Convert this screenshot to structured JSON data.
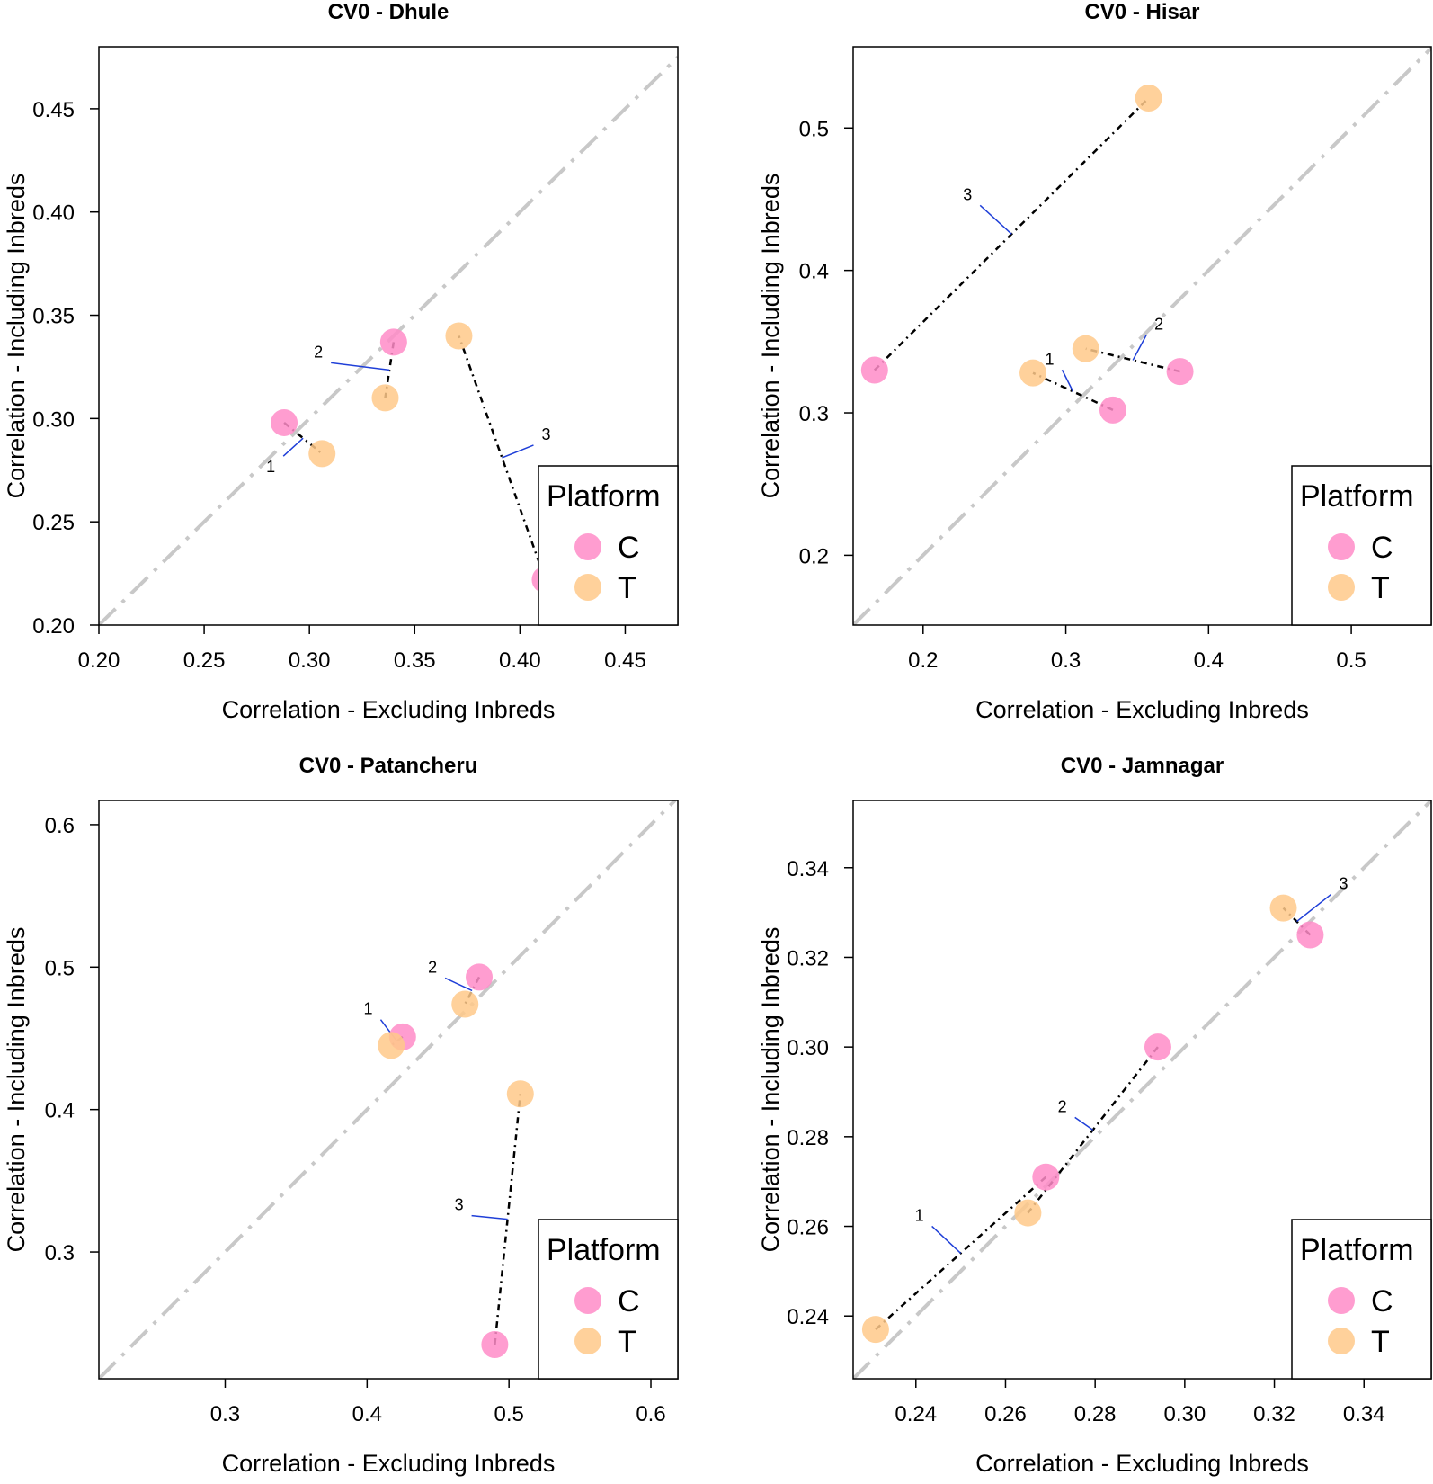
{
  "colors": {
    "C": "#ff8cc8",
    "T": "#ffc98a",
    "diagonal": "#c8c8c8",
    "connector": "#000000",
    "pointer": "#1f3fd8"
  },
  "chart_data": [
    {
      "type": "scatter",
      "title": "CV0 - Dhule",
      "xlabel": "Correlation - Excluding Inbreds",
      "ylabel": "Correlation - Including Inbreds",
      "xlim": [
        0.2,
        0.475
      ],
      "ylim": [
        0.2,
        0.48
      ],
      "xticks": [
        0.2,
        0.25,
        0.3,
        0.35,
        0.4,
        0.45
      ],
      "xtick_labels": [
        "0.20",
        "0.25",
        "0.30",
        "0.35",
        "0.40",
        "0.45"
      ],
      "yticks": [
        0.2,
        0.25,
        0.3,
        0.35,
        0.4,
        0.45
      ],
      "ytick_labels": [
        "0.20",
        "0.25",
        "0.30",
        "0.35",
        "0.40",
        "0.45"
      ],
      "legend": {
        "title": "Platform",
        "entries": [
          "C",
          "T"
        ],
        "position": "bottom-right"
      },
      "pairs": [
        {
          "label": "1",
          "C": [
            0.288,
            0.298
          ],
          "T": [
            0.306,
            0.283
          ]
        },
        {
          "label": "2",
          "C": [
            0.34,
            0.337
          ],
          "T": [
            0.336,
            0.31
          ]
        },
        {
          "label": "3",
          "C": [
            0.412,
            0.222
          ],
          "T": [
            0.371,
            0.34
          ]
        }
      ]
    },
    {
      "type": "scatter",
      "title": "CV0 - Hisar",
      "xlabel": "Correlation - Excluding Inbreds",
      "ylabel": "Correlation - Including Inbreds",
      "xlim": [
        0.151,
        0.556
      ],
      "ylim": [
        0.151,
        0.557
      ],
      "xticks": [
        0.2,
        0.3,
        0.4,
        0.5
      ],
      "xtick_labels": [
        "0.2",
        "0.3",
        "0.4",
        "0.5"
      ],
      "yticks": [
        0.2,
        0.3,
        0.4,
        0.5
      ],
      "ytick_labels": [
        "0.2",
        "0.3",
        "0.4",
        "0.5"
      ],
      "legend": {
        "title": "Platform",
        "entries": [
          "C",
          "T"
        ],
        "position": "bottom-right"
      },
      "pairs": [
        {
          "label": "1",
          "C": [
            0.333,
            0.302
          ],
          "T": [
            0.277,
            0.328
          ]
        },
        {
          "label": "2",
          "C": [
            0.38,
            0.329
          ],
          "T": [
            0.314,
            0.345
          ]
        },
        {
          "label": "3",
          "C": [
            0.166,
            0.33
          ],
          "T": [
            0.358,
            0.521
          ]
        }
      ]
    },
    {
      "type": "scatter",
      "title": "CV0 - Patancheru",
      "xlabel": "Correlation - Excluding Inbreds",
      "ylabel": "Correlation - Including Inbreds",
      "xlim": [
        0.211,
        0.619
      ],
      "ylim": [
        0.211,
        0.617
      ],
      "xticks": [
        0.3,
        0.4,
        0.5,
        0.6
      ],
      "xtick_labels": [
        "0.3",
        "0.4",
        "0.5",
        "0.6"
      ],
      "yticks": [
        0.3,
        0.4,
        0.5,
        0.6
      ],
      "ytick_labels": [
        "0.3",
        "0.4",
        "0.5",
        "0.6"
      ],
      "legend": {
        "title": "Platform",
        "entries": [
          "C",
          "T"
        ],
        "position": "bottom-right"
      },
      "pairs": [
        {
          "label": "1",
          "C": [
            0.425,
            0.451
          ],
          "T": [
            0.417,
            0.445
          ]
        },
        {
          "label": "2",
          "C": [
            0.479,
            0.493
          ],
          "T": [
            0.469,
            0.474
          ]
        },
        {
          "label": "3",
          "C": [
            0.49,
            0.235
          ],
          "T": [
            0.508,
            0.411
          ]
        }
      ]
    },
    {
      "type": "scatter",
      "title": "CV0 - Jamnagar",
      "xlabel": "Correlation - Excluding Inbreds",
      "ylabel": "Correlation - Including Inbreds",
      "xlim": [
        0.226,
        0.355
      ],
      "ylim": [
        0.226,
        0.355
      ],
      "xticks": [
        0.24,
        0.26,
        0.28,
        0.3,
        0.32,
        0.34
      ],
      "xtick_labels": [
        "0.24",
        "0.26",
        "0.28",
        "0.30",
        "0.32",
        "0.34"
      ],
      "yticks": [
        0.24,
        0.26,
        0.28,
        0.3,
        0.32,
        0.34
      ],
      "ytick_labels": [
        "0.24",
        "0.26",
        "0.28",
        "0.30",
        "0.32",
        "0.34"
      ],
      "legend": {
        "title": "Platform",
        "entries": [
          "C",
          "T"
        ],
        "position": "bottom-right"
      },
      "pairs": [
        {
          "label": "1",
          "C": [
            0.269,
            0.271
          ],
          "T": [
            0.231,
            0.237
          ]
        },
        {
          "label": "2",
          "C": [
            0.294,
            0.3
          ],
          "T": [
            0.265,
            0.263
          ]
        },
        {
          "label": "3",
          "C": [
            0.328,
            0.325
          ],
          "T": [
            0.322,
            0.331
          ]
        }
      ]
    }
  ]
}
